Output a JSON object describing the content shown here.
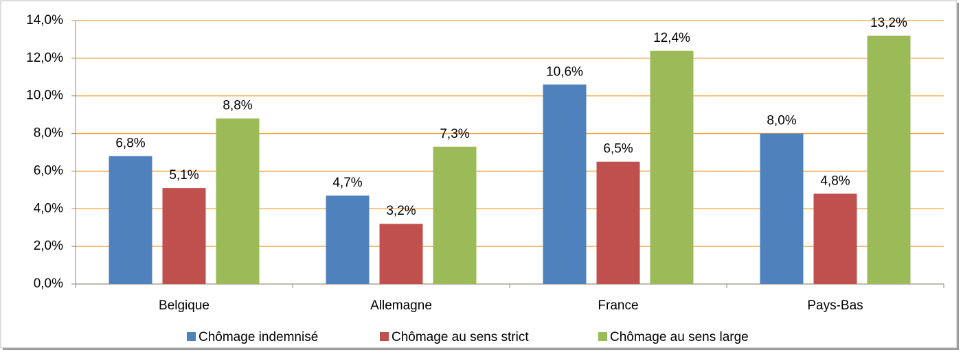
{
  "chart_data": {
    "type": "bar",
    "categories": [
      "Belgique",
      "Allemagne",
      "France",
      "Pays-Bas"
    ],
    "series": [
      {
        "name": "Chômage indemnisé",
        "color": "#4f81bd",
        "values": [
          6.8,
          4.7,
          10.6,
          8.0
        ],
        "value_labels": [
          "6,8%",
          "4,7%",
          "10,6%",
          "8,0%"
        ]
      },
      {
        "name": "Chômage au sens strict",
        "color": "#c0504d",
        "values": [
          5.1,
          3.2,
          6.5,
          4.8
        ],
        "value_labels": [
          "5,1%",
          "3,2%",
          "6,5%",
          "4,8%"
        ]
      },
      {
        "name": "Chômage au sens large",
        "color": "#9bbb59",
        "values": [
          8.8,
          7.3,
          12.4,
          13.2
        ],
        "value_labels": [
          "8,8%",
          "7,3%",
          "12,4%",
          "13,2%"
        ]
      }
    ],
    "ylim": [
      0,
      14
    ],
    "yticks": [
      {
        "value": 0,
        "label": "0,0%"
      },
      {
        "value": 2,
        "label": "2,0%"
      },
      {
        "value": 4,
        "label": "4,0%"
      },
      {
        "value": 6,
        "label": "6,0%"
      },
      {
        "value": 8,
        "label": "8,0%"
      },
      {
        "value": 10,
        "label": "10,0%"
      },
      {
        "value": 12,
        "label": "12,0%"
      },
      {
        "value": 14,
        "label": "14,0%"
      }
    ],
    "grid": true,
    "legend": "bottom"
  }
}
